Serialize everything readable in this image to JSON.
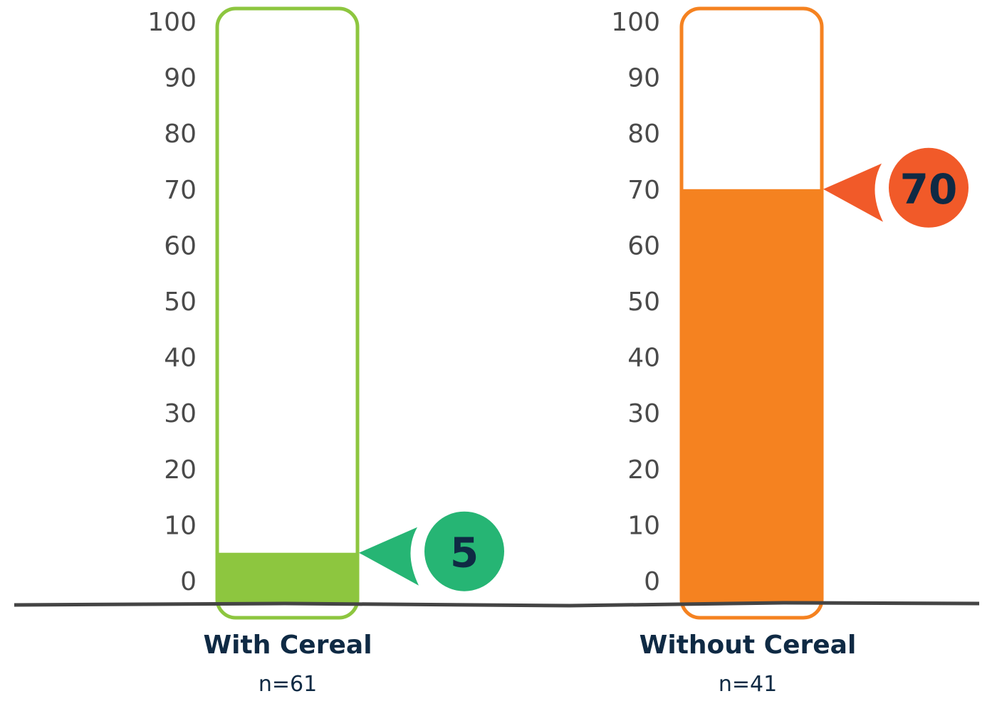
{
  "chart_data": {
    "type": "bar",
    "categories": [
      "With Cereal",
      "Without Cereal"
    ],
    "sample_sizes": [
      "n=61",
      "n=41"
    ],
    "values": [
      5,
      70
    ],
    "value_labels": [
      "5",
      "70"
    ],
    "ylim": [
      0,
      100
    ],
    "yticks": [
      "0",
      "10",
      "20",
      "30",
      "40",
      "50",
      "60",
      "70",
      "80",
      "90",
      "100"
    ],
    "grid": false,
    "colors": {
      "bars": [
        "#8dc63f",
        "#f58220"
      ],
      "callouts": [
        "#26b574",
        "#f15a29"
      ],
      "baseline": "#444444",
      "text": "#0f2a44"
    }
  }
}
